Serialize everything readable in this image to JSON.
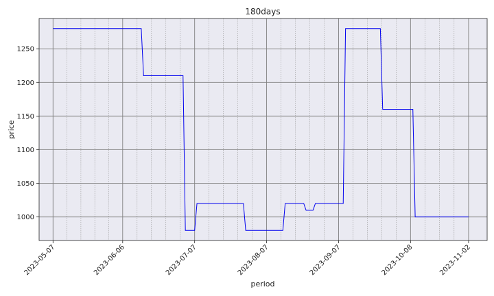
{
  "chart_data": {
    "type": "line",
    "title": "180days",
    "xlabel": "period",
    "ylabel": "price",
    "x_tick_labels": [
      "2023-05-07",
      "2023-06-06",
      "2023-07-07",
      "2023-08-07",
      "2023-09-07",
      "2023-10-08",
      "2023-11-02"
    ],
    "y_tick_labels": [
      "1000",
      "1050",
      "1100",
      "1150",
      "1200",
      "1250"
    ],
    "xlim": [
      "2023-05-01",
      "2023-11-10"
    ],
    "ylim": [
      965,
      1295
    ],
    "grid": true,
    "series": [
      {
        "color": "#0000ee",
        "points": [
          {
            "x": "2023-05-07",
            "y": 1280
          },
          {
            "x": "2023-06-14",
            "y": 1280
          },
          {
            "x": "2023-06-15",
            "y": 1210
          },
          {
            "x": "2023-07-02",
            "y": 1210
          },
          {
            "x": "2023-07-03",
            "y": 980
          },
          {
            "x": "2023-07-07",
            "y": 980
          },
          {
            "x": "2023-07-08",
            "y": 1020
          },
          {
            "x": "2023-07-28",
            "y": 1020
          },
          {
            "x": "2023-07-29",
            "y": 980
          },
          {
            "x": "2023-08-14",
            "y": 980
          },
          {
            "x": "2023-08-15",
            "y": 1020
          },
          {
            "x": "2023-08-23",
            "y": 1020
          },
          {
            "x": "2023-08-24",
            "y": 1010
          },
          {
            "x": "2023-08-27",
            "y": 1010
          },
          {
            "x": "2023-08-28",
            "y": 1020
          },
          {
            "x": "2023-09-09",
            "y": 1020
          },
          {
            "x": "2023-09-10",
            "y": 1280
          },
          {
            "x": "2023-09-25",
            "y": 1280
          },
          {
            "x": "2023-09-26",
            "y": 1160
          },
          {
            "x": "2023-10-09",
            "y": 1160
          },
          {
            "x": "2023-10-10",
            "y": 1000
          },
          {
            "x": "2023-11-02",
            "y": 1000
          }
        ]
      }
    ]
  },
  "colors": {
    "plot_bg": "#eaeaf2",
    "grid_major": "#808080",
    "grid_minor": "#9a9a9a",
    "line": "#0000ee"
  }
}
